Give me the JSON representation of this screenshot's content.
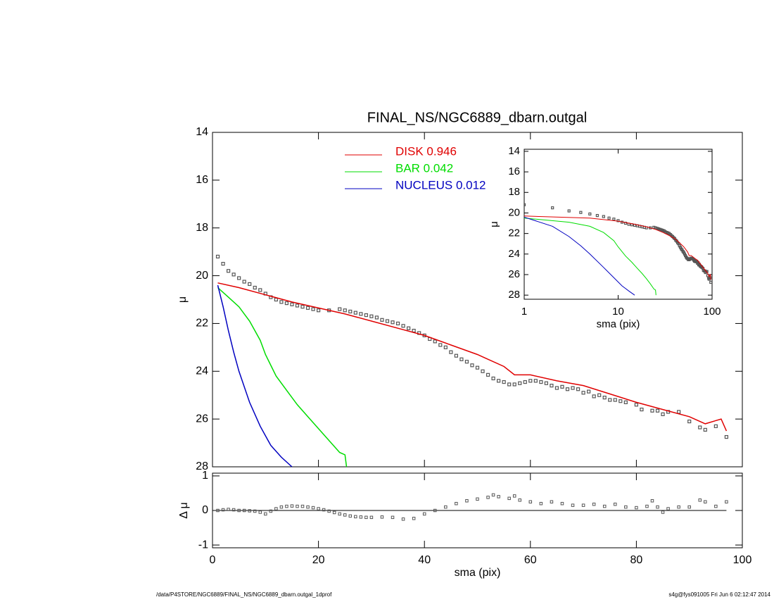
{
  "chart_data": [
    {
      "type": "line",
      "title": "FINAL_NS/NGC6889_dbarn.outgal",
      "y_label": "μ",
      "xlim": [
        0,
        100
      ],
      "ylim": [
        28,
        14
      ],
      "yticks": [
        14,
        16,
        18,
        20,
        22,
        24,
        26,
        28
      ],
      "series": [
        {
          "name": "DISK  0.946",
          "color": "#e00000",
          "x": [
            1,
            5,
            10,
            15,
            20,
            25,
            30,
            35,
            40,
            45,
            50,
            55,
            57,
            60,
            65,
            70,
            75,
            80,
            85,
            90,
            93,
            96,
            97
          ],
          "values": [
            20.3,
            20.5,
            20.8,
            21.1,
            21.35,
            21.6,
            21.9,
            22.2,
            22.5,
            22.9,
            23.3,
            23.8,
            24.15,
            24.15,
            24.4,
            24.6,
            24.95,
            25.3,
            25.6,
            25.9,
            26.2,
            26.0,
            26.5
          ]
        },
        {
          "name": "BAR  0.042",
          "color": "#00dd00",
          "x": [
            1,
            3,
            5,
            7,
            9,
            10,
            12,
            14,
            16,
            18,
            20,
            22,
            24,
            25,
            25.3
          ],
          "values": [
            20.5,
            20.9,
            21.3,
            21.9,
            22.7,
            23.3,
            24.2,
            24.8,
            25.4,
            25.9,
            26.4,
            26.9,
            27.4,
            27.5,
            28
          ]
        },
        {
          "name": "NUCLEUS  0.012",
          "color": "#0000c0",
          "x": [
            1,
            2,
            3,
            4,
            5,
            7,
            9,
            11,
            13,
            15
          ],
          "values": [
            20.4,
            21.3,
            22.3,
            23.2,
            24.0,
            25.3,
            26.3,
            27.1,
            27.6,
            28
          ]
        }
      ],
      "points": {
        "x": [
          1,
          2,
          3,
          4,
          5,
          6,
          7,
          8,
          9,
          10,
          11,
          12,
          13,
          14,
          15,
          16,
          17,
          18,
          19,
          20,
          22,
          24,
          25,
          26,
          27,
          28,
          29,
          30,
          31,
          32,
          33,
          34,
          35,
          36,
          37,
          38,
          39,
          40,
          41,
          42,
          43,
          44,
          45,
          46,
          47,
          48,
          49,
          50,
          51,
          52,
          53,
          54,
          55,
          56,
          57,
          58,
          59,
          60,
          61,
          62,
          63,
          64,
          65,
          66,
          67,
          68,
          69,
          70,
          71,
          72,
          73,
          74,
          75,
          76,
          77,
          78,
          80,
          81,
          83,
          84,
          85,
          86,
          88,
          90,
          92,
          93,
          95,
          97
        ],
        "values": [
          19.2,
          19.5,
          19.8,
          19.95,
          20.1,
          20.25,
          20.35,
          20.5,
          20.6,
          20.75,
          20.9,
          21.0,
          21.1,
          21.15,
          21.2,
          21.25,
          21.3,
          21.35,
          21.4,
          21.45,
          21.45,
          21.4,
          21.45,
          21.5,
          21.55,
          21.6,
          21.65,
          21.7,
          21.75,
          21.85,
          21.9,
          21.95,
          22.0,
          22.1,
          22.2,
          22.3,
          22.4,
          22.5,
          22.65,
          22.75,
          22.9,
          23.0,
          23.2,
          23.35,
          23.5,
          23.6,
          23.75,
          23.85,
          24.0,
          24.15,
          24.3,
          24.4,
          24.45,
          24.55,
          24.55,
          24.5,
          24.45,
          24.4,
          24.4,
          24.45,
          24.5,
          24.6,
          24.7,
          24.65,
          24.75,
          24.7,
          24.75,
          24.9,
          24.85,
          25.05,
          25.0,
          25.1,
          25.2,
          25.2,
          25.25,
          25.3,
          25.4,
          25.6,
          25.65,
          25.65,
          25.8,
          25.7,
          25.7,
          26.1,
          26.35,
          26.45,
          26.3,
          26.75
        ]
      }
    },
    {
      "type": "scatter",
      "x_label": "sma (pix)",
      "y_label": "Δ μ",
      "xlim": [
        0,
        100
      ],
      "xticks": [
        0,
        20,
        40,
        60,
        80,
        100
      ],
      "ylim": [
        -1.08,
        1.08
      ],
      "yticks": [
        -1,
        0,
        1
      ],
      "x": [
        1,
        2,
        3,
        4,
        5,
        6,
        7,
        8,
        9,
        10,
        11,
        12,
        13,
        14,
        15,
        16,
        17,
        18,
        19,
        20,
        21,
        22,
        23,
        24,
        25,
        26,
        27,
        28,
        29,
        30,
        32,
        34,
        36,
        38,
        40,
        42,
        44,
        46,
        48,
        50,
        52,
        53,
        54,
        56,
        57,
        58,
        60,
        62,
        64,
        66,
        68,
        70,
        72,
        74,
        76,
        78,
        80,
        82,
        83,
        84,
        85,
        86,
        88,
        90,
        92,
        93,
        95,
        97
      ],
      "values": [
        0,
        0.02,
        0.03,
        0.02,
        0,
        0,
        -0.01,
        -0.02,
        -0.05,
        -0.1,
        -0.02,
        0.05,
        0.1,
        0.12,
        0.13,
        0.12,
        0.12,
        0.1,
        0.08,
        0.05,
        0.02,
        -0.02,
        -0.06,
        -0.1,
        -0.13,
        -0.16,
        -0.18,
        -0.19,
        -0.2,
        -0.2,
        -0.19,
        -0.2,
        -0.25,
        -0.23,
        -0.1,
        0,
        0.1,
        0.2,
        0.28,
        0.33,
        0.38,
        0.45,
        0.4,
        0.35,
        0.42,
        0.3,
        0.25,
        0.2,
        0.25,
        0.2,
        0.15,
        0.15,
        0.18,
        0.12,
        0.18,
        0.1,
        0.08,
        0.12,
        0.28,
        0.1,
        -0.05,
        0.05,
        0.1,
        0.1,
        0.3,
        0.25,
        0.12,
        0.25
      ]
    },
    {
      "type": "line",
      "x_label": "sma (pix)",
      "y_label": "μ",
      "xscale": "log",
      "xlim": [
        1,
        100
      ],
      "xticks": [
        1,
        10,
        100
      ],
      "ylim": [
        28.4,
        13.8
      ],
      "yticks": [
        14,
        16,
        18,
        20,
        22,
        24,
        26,
        28
      ]
    }
  ],
  "footer": {
    "left": "/data/P4STORE/NGC6889/FINAL_NS/NGC6889_dbarn.outgal_1dprof",
    "right": "s4g@fys091005  Fri Jun  6 02:12:47 2014"
  }
}
